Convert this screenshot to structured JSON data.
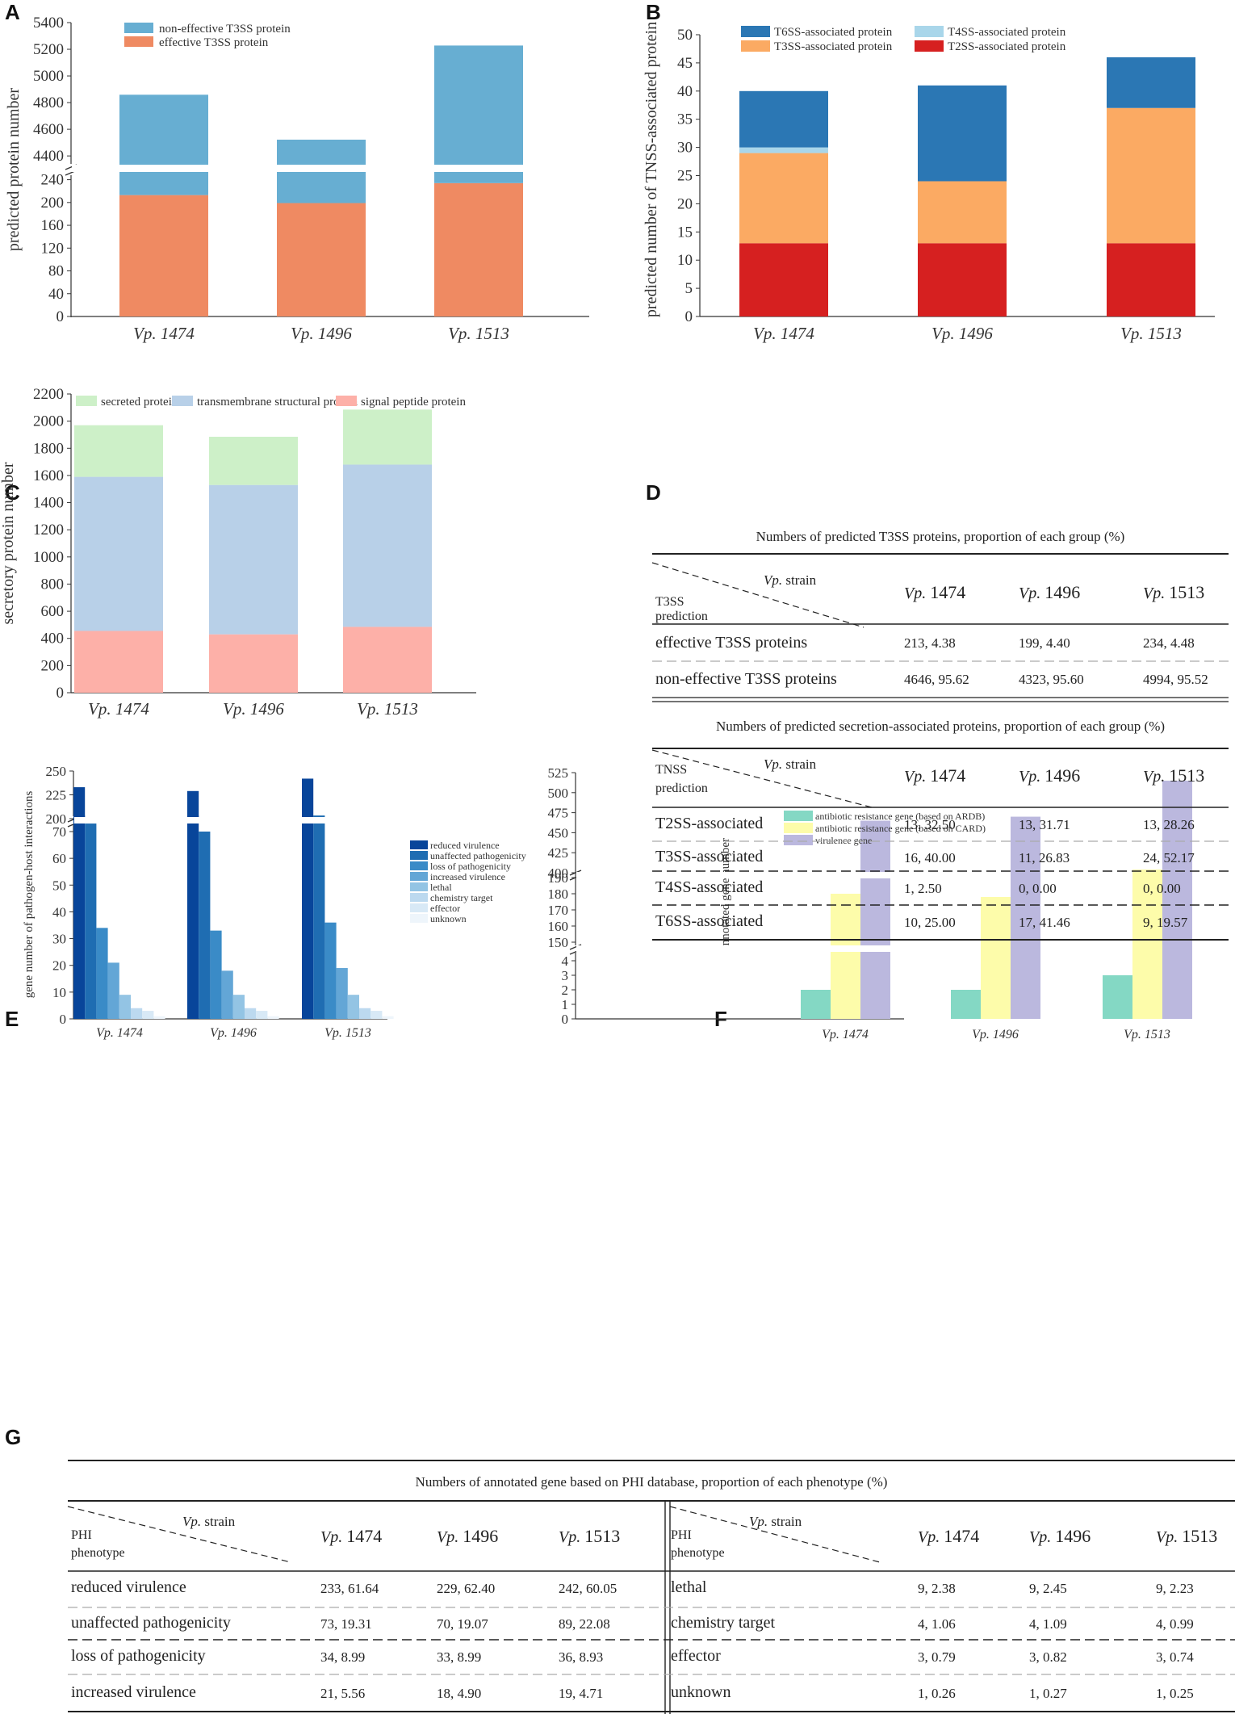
{
  "panels": {
    "A": "A",
    "B": "B",
    "C": "C",
    "D": "D",
    "E": "E",
    "F": "F",
    "G": "G"
  },
  "chart_data": [
    {
      "id": "A",
      "type": "bar",
      "stacked": true,
      "broken_axis": true,
      "ylabel": "predicted protein number",
      "categories": [
        "Vp. 1474",
        "Vp. 1496",
        "Vp. 1513"
      ],
      "series": [
        {
          "name": "effective T3SS protein",
          "color": "#ef8a62",
          "values": [
            213,
            199,
            234
          ]
        },
        {
          "name": "non-effective T3SS protein",
          "color": "#67aed2",
          "values": [
            4646,
            4323,
            4994
          ]
        }
      ],
      "lower_ticks": [
        0,
        40,
        80,
        120,
        160,
        200,
        240
      ],
      "upper_ticks": [
        4400,
        4600,
        4800,
        5000,
        5200,
        5400
      ],
      "lower_range": [
        0,
        255
      ],
      "upper_range": [
        4310,
        5400
      ]
    },
    {
      "id": "B",
      "type": "bar",
      "stacked": true,
      "ylabel": "predicted number of TNSS-associated protein",
      "categories": [
        "Vp. 1474",
        "Vp. 1496",
        "Vp. 1513"
      ],
      "series": [
        {
          "name": "T2SS-associated protein",
          "color": "#d62020",
          "values": [
            13,
            13,
            13
          ]
        },
        {
          "name": "T3SS-associated protein",
          "color": "#fbaa63",
          "values": [
            16,
            11,
            24
          ]
        },
        {
          "name": "T4SS-associated protein",
          "color": "#a9d6ea",
          "values": [
            1,
            0,
            0
          ]
        },
        {
          "name": "T6SS-associated protein",
          "color": "#2b77b4",
          "values": [
            10,
            17,
            9
          ]
        }
      ],
      "legend_order": [
        "T6SS-associated protein",
        "T4SS-associated protein",
        "T3SS-associated protein",
        "T2SS-associated protein"
      ],
      "ylim": [
        0,
        50
      ],
      "yticks": [
        0,
        5,
        10,
        15,
        20,
        25,
        30,
        35,
        40,
        45,
        50
      ]
    },
    {
      "id": "C",
      "type": "bar",
      "stacked": true,
      "ylabel": "secretory protein number",
      "categories": [
        "Vp. 1474",
        "Vp. 1496",
        "Vp. 1513"
      ],
      "series": [
        {
          "name": "signal peptide protein",
          "color": "#fdb0a8",
          "values": [
            455,
            430,
            485
          ]
        },
        {
          "name": "transmembrane structural protein",
          "color": "#b8d0e8",
          "values": [
            1135,
            1100,
            1195
          ]
        },
        {
          "name": "secreted protein",
          "color": "#cdf0c8",
          "values": [
            380,
            355,
            405
          ]
        }
      ],
      "legend_order": [
        "secreted protein",
        "transmembrane structural protein",
        "signal peptide protein"
      ],
      "ylim": [
        0,
        2200
      ],
      "yticks": [
        0,
        200,
        400,
        600,
        800,
        1000,
        1200,
        1400,
        1600,
        1800,
        2000,
        2200
      ]
    },
    {
      "id": "E",
      "type": "bar",
      "grouped": true,
      "broken_axis": true,
      "ylabel": "gene number of pathogen-host interactions",
      "categories": [
        "Vp. 1474",
        "Vp. 1496",
        "Vp. 1513"
      ],
      "series": [
        {
          "name": "reduced virulence",
          "color": "#08459a",
          "values": [
            233,
            229,
            242
          ]
        },
        {
          "name": "unaffected pathogenicity",
          "color": "#1f6db2",
          "values": [
            73,
            70,
            89
          ]
        },
        {
          "name": "loss of pathogenicity",
          "color": "#3a8bc7",
          "values": [
            34,
            33,
            36
          ]
        },
        {
          "name": "increased virulence",
          "color": "#63a6d6",
          "values": [
            21,
            18,
            19
          ]
        },
        {
          "name": "lethal",
          "color": "#93c4e4",
          "values": [
            9,
            9,
            9
          ]
        },
        {
          "name": "chemistry target",
          "color": "#bcd9ef",
          "values": [
            4,
            4,
            4
          ]
        },
        {
          "name": "effector",
          "color": "#d8e9f6",
          "values": [
            3,
            3,
            3
          ]
        },
        {
          "name": "unknown",
          "color": "#eef5fb",
          "values": [
            1,
            1,
            1
          ]
        }
      ],
      "lower_ticks": [
        0,
        10,
        20,
        30,
        40,
        50,
        60,
        70
      ],
      "upper_ticks": [
        200,
        225,
        250
      ],
      "lower_range": [
        0,
        76
      ],
      "upper_range": [
        195,
        250
      ]
    },
    {
      "id": "F",
      "type": "bar",
      "grouped": true,
      "broken_axis": true,
      "ylabel": "annotated gene number",
      "categories": [
        "Vp. 1474",
        "Vp. 1496",
        "Vp. 1513"
      ],
      "series": [
        {
          "name": "antibiotic resistance gene (based on ARDB)",
          "color": "#84d8c4",
          "values": [
            2,
            2,
            3
          ]
        },
        {
          "name": "antibiotic resistance gene (based on CARD)",
          "color": "#fdfcaa",
          "values": [
            180,
            178,
            195
          ]
        },
        {
          "name": "virulence gene",
          "color": "#bbb8de",
          "values": [
            465,
            470,
            515
          ]
        }
      ],
      "seg1_ticks": [
        0,
        1,
        2,
        3,
        4
      ],
      "seg2_ticks": [
        150,
        160,
        170,
        180,
        190
      ],
      "seg3_ticks": [
        400,
        425,
        450,
        475,
        500,
        525
      ],
      "seg1_range": [
        0,
        4.8
      ],
      "seg2_range": [
        145,
        199
      ],
      "seg3_range": [
        395,
        525
      ]
    }
  ],
  "table_D": {
    "title1": "Numbers of predicted T3SS proteins, proportion of each group (%)",
    "title2": "Numbers of predicted secretion-associated proteins, proportion of each group (%)",
    "strain_prefix": "Vp.",
    "strain_suffix": "strain",
    "t3ss_row_label1": "T3SS",
    "t3ss_row_label2": "prediction",
    "tnss_row_label1": "TNSS",
    "tnss_row_label2": "prediction",
    "col_prefix": "Vp.",
    "cols": [
      "1474",
      "1496",
      "1513"
    ],
    "t3ss_rows": [
      {
        "label": "effective T3SS proteins",
        "values": [
          "213, 4.38",
          "199, 4.40",
          "234, 4.48"
        ]
      },
      {
        "label": "non-effective T3SS proteins",
        "values": [
          "4646, 95.62",
          "4323, 95.60",
          "4994, 95.52"
        ]
      }
    ],
    "tnss_rows": [
      {
        "label": "T2SS-associated",
        "values": [
          "13, 32.50",
          "13, 31.71",
          "13, 28.26"
        ]
      },
      {
        "label": "T3SS-associated",
        "values": [
          "16, 40.00",
          "11, 26.83",
          "24, 52.17"
        ]
      },
      {
        "label": "T4SS-associated",
        "values": [
          "1, 2.50",
          "0, 0.00",
          "0, 0.00"
        ]
      },
      {
        "label": "T6SS-associated",
        "values": [
          "10, 25.00",
          "17, 41.46",
          "9, 19.57"
        ]
      }
    ]
  },
  "table_G": {
    "title": "Numbers of annotated gene based on PHI database, proportion of each phenotype (%)",
    "strain_prefix": "Vp.",
    "strain_suffix": "strain",
    "row_label1": "PHI",
    "row_label2": "phenotype",
    "col_prefix": "Vp.",
    "cols": [
      "1474",
      "1496",
      "1513"
    ],
    "left_rows": [
      {
        "label": "reduced virulence",
        "values": [
          "233, 61.64",
          "229, 62.40",
          "242, 60.05"
        ]
      },
      {
        "label": "unaffected pathogenicity",
        "values": [
          "73, 19.31",
          "70, 19.07",
          "89, 22.08"
        ]
      },
      {
        "label": "loss of pathogenicity",
        "values": [
          "34, 8.99",
          "33, 8.99",
          "36, 8.93"
        ]
      },
      {
        "label": "increased virulence",
        "values": [
          "21, 5.56",
          "18, 4.90",
          "19, 4.71"
        ]
      }
    ],
    "right_rows": [
      {
        "label": "lethal",
        "values": [
          "9, 2.38",
          "9, 2.45",
          "9, 2.23"
        ]
      },
      {
        "label": "chemistry target",
        "values": [
          "4, 1.06",
          "4, 1.09",
          "4, 0.99"
        ]
      },
      {
        "label": "effector",
        "values": [
          "3, 0.79",
          "3, 0.82",
          "3, 0.74"
        ]
      },
      {
        "label": "unknown",
        "values": [
          "1, 0.26",
          "1, 0.27",
          "1, 0.25"
        ]
      }
    ]
  }
}
